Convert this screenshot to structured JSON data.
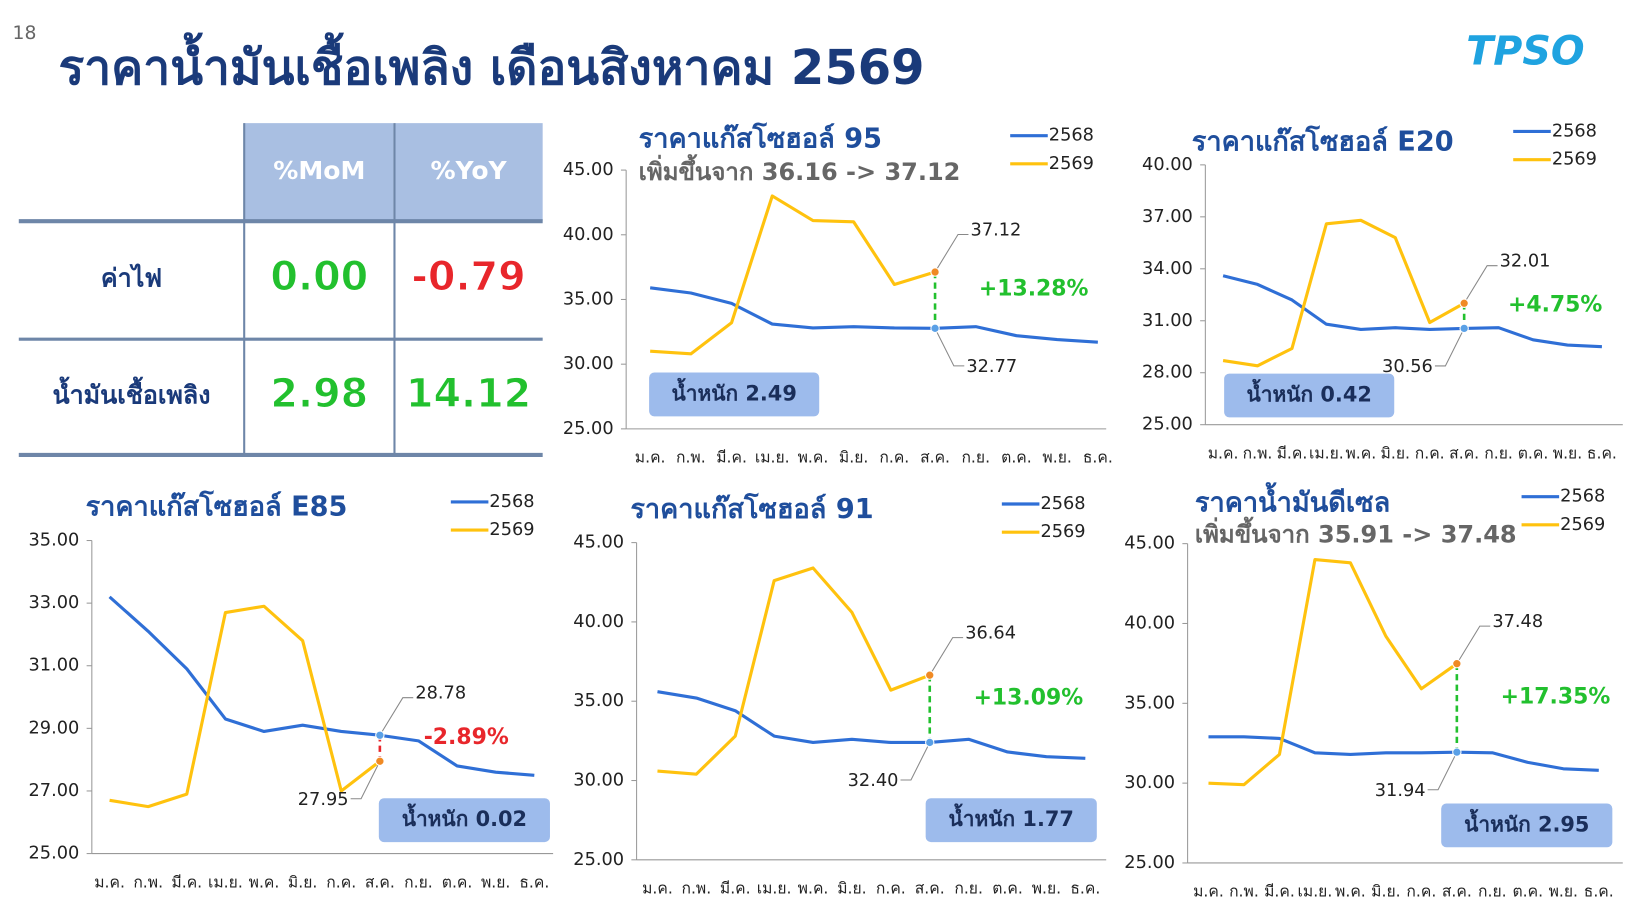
{
  "page_number": "18",
  "title": "ราคาน้ำมันเชื้อเพลิง เดือนสิงหาคม 2569",
  "logo": "TPSO",
  "table": {
    "columns": [
      "%MoM",
      "%YoY"
    ],
    "rows": [
      {
        "label": "ค่าไฟ",
        "values": [
          "0.00",
          "-0.79"
        ],
        "colors": [
          "#22c02e",
          "#e8262b"
        ]
      },
      {
        "label": "น้ำมันเชื้อเพลิง",
        "values": [
          "2.98",
          "14.12"
        ],
        "colors": [
          "#22c02e",
          "#22c02e"
        ]
      }
    ]
  },
  "chart_data": [
    {
      "type": "line",
      "title": "ราคาแก๊สโซฮอล์ 95",
      "subtitle": "เพิ่มขึ้นจาก 36.16 -> 37.12",
      "categories": [
        "ม.ค.",
        "ก.พ.",
        "มี.ค.",
        "เม.ย.",
        "พ.ค.",
        "มิ.ย.",
        "ก.ค.",
        "ส.ค.",
        "ก.ย.",
        "ต.ค.",
        "พ.ย.",
        "ธ.ค."
      ],
      "series": [
        {
          "name": "2568",
          "color": "#2f6fd6",
          "values": [
            35.9,
            35.5,
            34.7,
            33.1,
            32.8,
            32.9,
            32.8,
            32.77,
            32.9,
            32.2,
            31.9,
            31.7
          ],
          "value_labels": [
            null,
            null,
            null,
            null,
            null,
            null,
            null,
            "32.77",
            null,
            null,
            null,
            null
          ]
        },
        {
          "name": "2569",
          "color": "#ffc20e",
          "values": [
            31.0,
            30.8,
            33.2,
            43.0,
            41.1,
            41.0,
            36.16,
            37.12,
            null,
            null,
            null,
            null
          ],
          "value_labels": [
            null,
            null,
            null,
            null,
            null,
            null,
            null,
            "37.12",
            null,
            null,
            null,
            null
          ]
        }
      ],
      "ylim": [
        25,
        45
      ],
      "yticks": [
        {
          "value": 25,
          "label": "25.00"
        },
        {
          "value": 30,
          "label": "30.00"
        },
        {
          "value": 35,
          "label": "35.00"
        },
        {
          "value": 40,
          "label": "40.00"
        },
        {
          "value": 45,
          "label": "45.00"
        }
      ],
      "change": "+13.28%",
      "change_color": "#22c02e",
      "weight": "น้ำหนัก 2.49"
    },
    {
      "type": "line",
      "title": "ราคาแก๊สโซฮอล์ E20",
      "categories": [
        "ม.ค.",
        "ก.พ.",
        "มี.ค.",
        "เม.ย.",
        "พ.ค.",
        "มิ.ย.",
        "ก.ค.",
        "ส.ค.",
        "ก.ย.",
        "ต.ค.",
        "พ.ย.",
        "ธ.ค."
      ],
      "series": [
        {
          "name": "2568",
          "color": "#2f6fd6",
          "values": [
            33.6,
            33.1,
            32.2,
            30.8,
            30.5,
            30.6,
            30.5,
            30.56,
            30.6,
            29.9,
            29.6,
            29.5
          ],
          "value_labels": [
            null,
            null,
            null,
            null,
            null,
            null,
            null,
            "30.56",
            null,
            null,
            null,
            null
          ]
        },
        {
          "name": "2569",
          "color": "#ffc20e",
          "values": [
            28.7,
            28.4,
            29.4,
            36.6,
            36.8,
            35.8,
            30.9,
            32.01,
            null,
            null,
            null,
            null
          ],
          "value_labels": [
            null,
            null,
            null,
            null,
            null,
            null,
            null,
            "32.01",
            null,
            null,
            null,
            null
          ]
        }
      ],
      "ylim": [
        25,
        40
      ],
      "yticks": [
        {
          "value": 25,
          "label": "25.00"
        },
        {
          "value": 28,
          "label": "28.00"
        },
        {
          "value": 31,
          "label": "31.00"
        },
        {
          "value": 34,
          "label": "34.00"
        },
        {
          "value": 37,
          "label": "37.00"
        },
        {
          "value": 40,
          "label": "40.00"
        }
      ],
      "change": "+4.75%",
      "change_color": "#22c02e",
      "weight": "น้ำหนัก 0.42"
    },
    {
      "type": "line",
      "title": "ราคาแก๊สโซฮอล์ E85",
      "categories": [
        "ม.ค.",
        "ก.พ.",
        "มี.ค.",
        "เม.ย.",
        "พ.ค.",
        "มิ.ย.",
        "ก.ค.",
        "ส.ค.",
        "ก.ย.",
        "ต.ค.",
        "พ.ย.",
        "ธ.ค."
      ],
      "series": [
        {
          "name": "2568",
          "color": "#2f6fd6",
          "values": [
            33.2,
            32.1,
            30.9,
            29.3,
            28.9,
            29.1,
            28.9,
            28.78,
            28.6,
            27.8,
            27.6,
            27.5
          ],
          "value_labels": [
            null,
            null,
            null,
            null,
            null,
            null,
            null,
            "28.78",
            null,
            null,
            null,
            null
          ]
        },
        {
          "name": "2569",
          "color": "#ffc20e",
          "values": [
            26.7,
            26.5,
            26.9,
            32.7,
            32.9,
            31.8,
            27.0,
            27.95,
            null,
            null,
            null,
            null
          ],
          "value_labels": [
            null,
            null,
            null,
            null,
            null,
            null,
            null,
            "27.95",
            null,
            null,
            null,
            null
          ]
        }
      ],
      "ylim": [
        25,
        35
      ],
      "yticks": [
        {
          "value": 25,
          "label": "25.00"
        },
        {
          "value": 27,
          "label": "27.00"
        },
        {
          "value": 29,
          "label": "29.00"
        },
        {
          "value": 31,
          "label": "31.00"
        },
        {
          "value": 33,
          "label": "33.00"
        },
        {
          "value": 35,
          "label": "35.00"
        }
      ],
      "change": "-2.89%",
      "change_color": "#e8262b",
      "weight": "น้ำหนัก 0.02"
    },
    {
      "type": "line",
      "title": "ราคาแก๊สโซฮอล์ 91",
      "categories": [
        "ม.ค.",
        "ก.พ.",
        "มี.ค.",
        "เม.ย.",
        "พ.ค.",
        "มิ.ย.",
        "ก.ค.",
        "ส.ค.",
        "ก.ย.",
        "ต.ค.",
        "พ.ย.",
        "ธ.ค."
      ],
      "series": [
        {
          "name": "2568",
          "color": "#2f6fd6",
          "values": [
            35.6,
            35.2,
            34.4,
            32.8,
            32.4,
            32.6,
            32.4,
            32.4,
            32.6,
            31.8,
            31.5,
            31.4
          ],
          "value_labels": [
            null,
            null,
            null,
            null,
            null,
            null,
            null,
            "32.40",
            null,
            null,
            null,
            null
          ]
        },
        {
          "name": "2569",
          "color": "#ffc20e",
          "values": [
            30.6,
            30.4,
            32.8,
            42.6,
            43.4,
            40.6,
            35.7,
            36.64,
            null,
            null,
            null,
            null
          ],
          "value_labels": [
            null,
            null,
            null,
            null,
            null,
            null,
            null,
            "36.64",
            null,
            null,
            null,
            null
          ]
        }
      ],
      "ylim": [
        25,
        45
      ],
      "yticks": [
        {
          "value": 25,
          "label": "25.00"
        },
        {
          "value": 30,
          "label": "30.00"
        },
        {
          "value": 35,
          "label": "35.00"
        },
        {
          "value": 40,
          "label": "40.00"
        },
        {
          "value": 45,
          "label": "45.00"
        }
      ],
      "change": "+13.09%",
      "change_color": "#22c02e",
      "weight": "น้ำหนัก 1.77"
    },
    {
      "type": "line",
      "title": "ราคาน้ำมันดีเซล",
      "subtitle": "เพิ่มขึ้นจาก 35.91 -> 37.48",
      "categories": [
        "ม.ค.",
        "ก.พ.",
        "มี.ค.",
        "เม.ย.",
        "พ.ค.",
        "มิ.ย.",
        "ก.ค.",
        "ส.ค.",
        "ก.ย.",
        "ต.ค.",
        "พ.ย.",
        "ธ.ค."
      ],
      "series": [
        {
          "name": "2568",
          "color": "#2f6fd6",
          "values": [
            32.9,
            32.9,
            32.8,
            31.9,
            31.8,
            31.9,
            31.9,
            31.94,
            31.9,
            31.3,
            30.9,
            30.8
          ],
          "value_labels": [
            null,
            null,
            null,
            null,
            null,
            null,
            null,
            "31.94",
            null,
            null,
            null,
            null
          ]
        },
        {
          "name": "2569",
          "color": "#ffc20e",
          "values": [
            30.0,
            29.9,
            31.8,
            44.0,
            43.8,
            39.2,
            35.91,
            37.48,
            null,
            null,
            null,
            null
          ],
          "value_labels": [
            null,
            null,
            null,
            null,
            null,
            null,
            null,
            "37.48",
            null,
            null,
            null,
            null
          ]
        }
      ],
      "ylim": [
        25,
        45
      ],
      "yticks": [
        {
          "value": 25,
          "label": "25.00"
        },
        {
          "value": 30,
          "label": "30.00"
        },
        {
          "value": 35,
          "label": "35.00"
        },
        {
          "value": 40,
          "label": "40.00"
        },
        {
          "value": 45,
          "label": "45.00"
        }
      ],
      "change": "+17.35%",
      "change_color": "#22c02e",
      "weight": "น้ำหนัก 2.95"
    }
  ]
}
